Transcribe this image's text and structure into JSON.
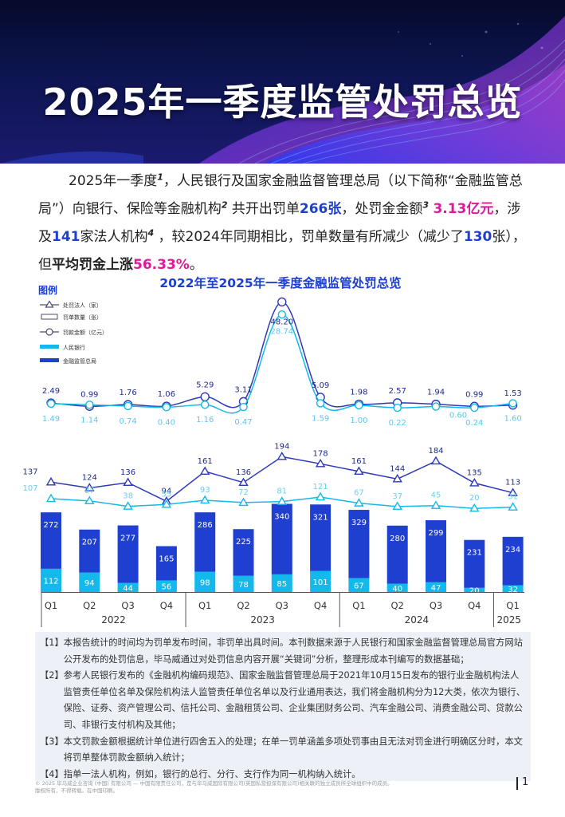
{
  "title": "2025年一季度监管处罚总览",
  "intro": {
    "p1": "2025年一季度",
    "p2": "，人民银行及国家金融监督管理总局（以下简称“金融监管总局”）向银行、保险等金融机构",
    "p3": " 共开出罚单",
    "penalties": "266张",
    "p4": "，处罚金金额",
    "fine": "3.13亿元",
    "p5": "，涉及",
    "entities": "141",
    "p6": "家法人机构",
    "p7": " ，较2024年同期相比，罚单数量有所减少（减少了",
    "decrease": "130",
    "p8": "张），但",
    "avg": "平均罚金上涨",
    "rise": "56.33%",
    "p9": "。",
    "ref1": "1",
    "ref2": "2",
    "ref3": "3",
    "ref4": "4"
  },
  "chart_data": {
    "type": "bar",
    "title": "2022年至2025年一季度金融监管处罚总览",
    "legend_title": "图例",
    "legend": [
      "处罚法人（家）",
      "罚单数量（张）",
      "罚款金额（亿元）",
      "人民银行",
      "金融监管总局"
    ],
    "categories": [
      "Q1",
      "Q2",
      "Q3",
      "Q4",
      "Q1",
      "Q2",
      "Q3",
      "Q4",
      "Q1",
      "Q2",
      "Q3",
      "Q4",
      "Q1"
    ],
    "years": [
      {
        "label": "2022",
        "span": 4
      },
      {
        "label": "2023",
        "span": 4
      },
      {
        "label": "2024",
        "span": 4
      },
      {
        "label": "2025",
        "span": 1
      }
    ],
    "series": [
      {
        "name": "人民银行",
        "type": "bar",
        "color": "#13b9ea",
        "values": [
          112,
          94,
          44,
          56,
          98,
          78,
          85,
          101,
          67,
          40,
          47,
          20,
          32
        ]
      },
      {
        "name": "金融监管总局",
        "type": "bar",
        "color": "#1f3fd1",
        "values": [
          272,
          207,
          277,
          165,
          286,
          225,
          340,
          321,
          329,
          280,
          299,
          231,
          234
        ]
      },
      {
        "name": "处罚法人（家）",
        "type": "line",
        "values": [
          137,
          124,
          136,
          94,
          161,
          136,
          194,
          178,
          161,
          144,
          184,
          135,
          113
        ]
      },
      {
        "name": "罚单数量（张）",
        "type": "line",
        "values": [
          107,
          87,
          38,
          55,
          93,
          72,
          81,
          121,
          67,
          37,
          45,
          20,
          31
        ]
      },
      {
        "name": "罚款金额（亿元）",
        "type": "line",
        "values": [
          2.49,
          0.99,
          1.76,
          1.06,
          5.29,
          3.11,
          48.2,
          5.09,
          1.98,
          2.57,
          1.94,
          0.99,
          1.53
        ]
      },
      {
        "name": "罚款金额（亿元）",
        "type": "line",
        "values": [
          1.49,
          1.14,
          0.74,
          0.4,
          1.16,
          0.47,
          28.74,
          1.59,
          1.0,
          0.22,
          0.6,
          0.24,
          1.6
        ]
      }
    ]
  },
  "notes": [
    {
      "num": "【1】",
      "text": "本报告统计的时间均为罚单发布时间，非罚单出具时间。本刊数据来源于人民银行和国家金融监督管理总局官方网站公开发布的处罚信息，毕马威通过对处罚信息内容开展“关键词”分析，整理形成本刊编写的数据基础；"
    },
    {
      "num": "【2】",
      "text": "参考人民银行发布的《金融机构编码规范》、国家金融监督管理总局于2021年10月15日发布的银行业金融机构法人监管责任单位名单及保险机构法人监管责任单位名单以及行业通用表达，我们将金融机构分为12大类，依次为银行、保险、证券、资产管理公司、信托公司、金融租赁公司、企业集团财务公司、汽车金融公司、消费金融公司、贷款公司、非银行支付机构及其他；"
    },
    {
      "num": "【3】",
      "text": "本文罚款金额根据统计单位进行四舍五入的处理；在单一罚单涵盖多项处罚事由且无法对罚金进行明确区分时，本文将罚单整体罚款金额纳入统计；"
    },
    {
      "num": "【4】",
      "text": "指单一法人机构，例如，银行的总行、分行、支行作为同一机构纳入统计。"
    }
  ],
  "footer": {
    "line1": "© 2025 毕马威企业咨询 (中国) 有限公司 — 中国有限责任公司，是与毕马威国际有限公司(英国私营担保有限公司)相关联的独立成员所全球组织中的成员。",
    "line2": "版权所有，不得转载。在中国印刷。"
  },
  "page_number": "1"
}
